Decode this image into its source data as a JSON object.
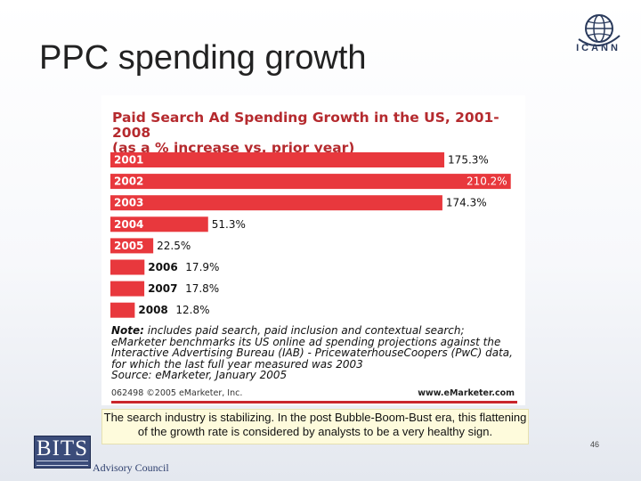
{
  "slide": {
    "title": "PPC spending growth",
    "caption": "The search industry is stabilizing. In the post Bubble-Boom-Bust era, this flattening of the growth rate is considered by analysts to be a very healthy sign.",
    "page_number": "46",
    "icann_label": "ICANN",
    "bits_logo_text": "BITS",
    "advisory_label": "Advisory Council"
  },
  "chart_data": {
    "type": "bar",
    "orientation": "horizontal",
    "title_line1": "Paid Search Ad Spending Growth in the US, 2001-2008",
    "title_line2": "(as a % increase vs. prior year)",
    "categories": [
      "2001",
      "2002",
      "2003",
      "2004",
      "2005",
      "2006",
      "2007",
      "2008"
    ],
    "values": [
      175.3,
      210.2,
      174.3,
      51.3,
      22.5,
      17.9,
      17.8,
      12.8
    ],
    "value_labels": [
      "175.3%",
      "210.2%",
      "174.3%",
      "51.3%",
      "22.5%",
      "17.9%",
      "17.8%",
      "12.8%"
    ],
    "xlim": [
      0,
      215
    ],
    "grid": false,
    "bar_color": "#e8383d",
    "title_color": "#b52a2e",
    "note_label": "Note:",
    "note_text": "includes paid search, paid inclusion and contextual search; eMarketer benchmarks its US online ad spending projections against the Interactive Advertising Bureau (IAB) - PricewaterhouseCoopers (PwC) data, for which the last full year measured was 2003",
    "source_label": "Source:",
    "source_text": "eMarketer, January 2005",
    "copyright": "062498 ©2005 eMarketer, Inc.",
    "brand": "www.eMarketer.com"
  }
}
